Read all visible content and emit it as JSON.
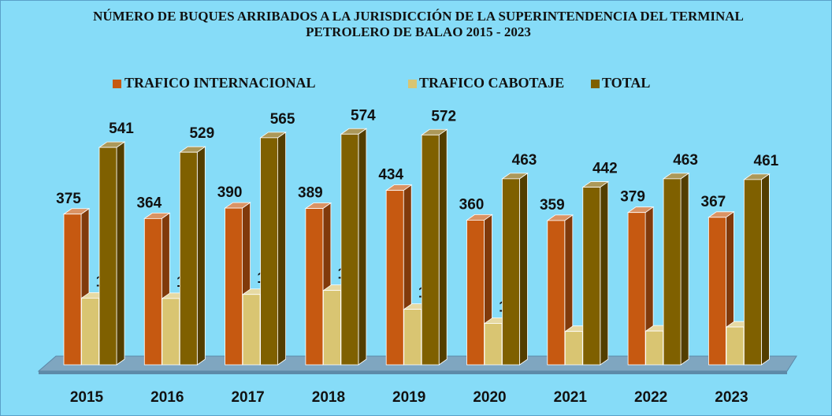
{
  "chart_data": {
    "type": "bar3d",
    "title": "NÚMERO DE BUQUES ARRIBADOS A LA JURISDICCIÓN DE LA SUPERINTENDENCIA DEL TERMINAL PETROLERO DE BALAO 2015 - 2023",
    "categories": [
      "2015",
      "2016",
      "2017",
      "2018",
      "2019",
      "2020",
      "2021",
      "2022",
      "2023"
    ],
    "series": [
      {
        "name": "TRAFICO INTERNACIONAL",
        "color": "#c65911",
        "values": [
          375,
          364,
          390,
          389,
          434,
          360,
          359,
          379,
          367
        ]
      },
      {
        "name": "TRAFICO CABOTAJE",
        "color": "#d9c572",
        "values": [
          166,
          165,
          175,
          185,
          138,
          103,
          83,
          84,
          94
        ]
      },
      {
        "name": "TOTAL",
        "color": "#7f6000",
        "values": [
          541,
          529,
          565,
          574,
          572,
          463,
          442,
          463,
          461
        ]
      }
    ]
  }
}
